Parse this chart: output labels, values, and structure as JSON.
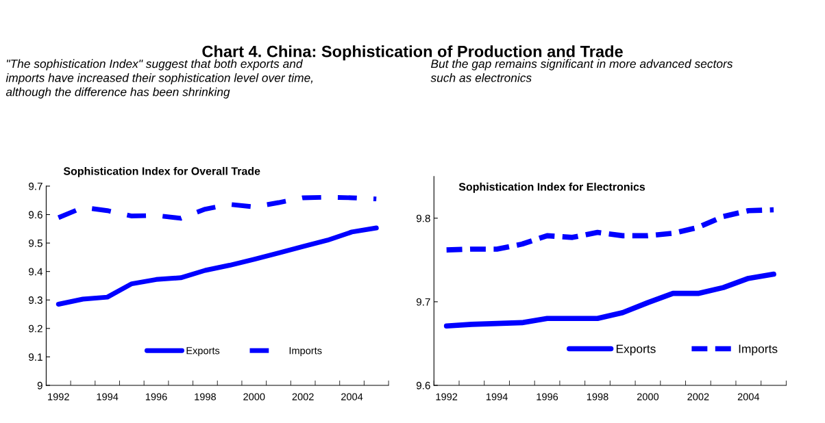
{
  "chart_data": [
    {
      "type": "line",
      "title": "Sophistication Index for Overall Trade",
      "annotations": [
        "Chart 4. China: Sophistication of Production and Trade",
        "\"The sophistication Index\" suggest that both exports and\nimports have increased their sophistication level over time,\nalthough the difference has been shrinking"
      ],
      "categories": [
        "1992",
        null,
        "1994",
        null,
        "1996",
        null,
        "1998",
        null,
        "2000",
        null,
        "2002",
        null,
        "2004",
        null
      ],
      "series": [
        {
          "name": "Exports",
          "color": "#0000ff",
          "line_style": "solid",
          "values": [
            9.285,
            9.303,
            9.31,
            9.357,
            9.372,
            9.378,
            9.404,
            9.422,
            9.443,
            9.465,
            9.488,
            9.51,
            9.539,
            9.553
          ]
        },
        {
          "name": "Imports",
          "color": "#0000ff",
          "line_style": "dashed",
          "values": [
            9.589,
            9.625,
            9.614,
            9.595,
            9.597,
            9.587,
            9.619,
            9.636,
            9.627,
            9.642,
            9.659,
            9.661,
            9.659,
            9.655
          ]
        }
      ],
      "ylim": [
        9,
        9.7
      ],
      "yticks": [
        9,
        9.1,
        9.2,
        9.3,
        9.4,
        9.5,
        9.6,
        9.7
      ],
      "grid": false,
      "legend": "bottom",
      "marker": "none"
    },
    {
      "type": "line",
      "title": "Sophistication Index for Electronics",
      "annotations": [
        "But the gap remains significant in more advanced sectors\nsuch as electronics"
      ],
      "categories": [
        "1992",
        null,
        "1994",
        null,
        "1996",
        null,
        "1998",
        null,
        "2000",
        null,
        "2002",
        null,
        "2004",
        null
      ],
      "series": [
        {
          "name": "Exports",
          "color": "#0000ff",
          "line_style": "solid",
          "values": [
            9.671,
            9.673,
            9.674,
            9.675,
            9.68,
            9.68,
            9.68,
            9.687,
            9.699,
            9.71,
            9.71,
            9.717,
            9.728,
            9.733
          ]
        },
        {
          "name": "Imports",
          "color": "#0000ff",
          "line_style": "dashed",
          "values": [
            9.762,
            9.763,
            9.763,
            9.769,
            9.779,
            9.777,
            9.783,
            9.779,
            9.779,
            9.782,
            9.789,
            9.802,
            9.809,
            9.81
          ]
        }
      ],
      "ylim": [
        9.6,
        9.85
      ],
      "yticks": [
        9.6,
        9.7,
        9.8
      ],
      "grid": false,
      "legend": "bottom right",
      "marker": "none"
    }
  ]
}
